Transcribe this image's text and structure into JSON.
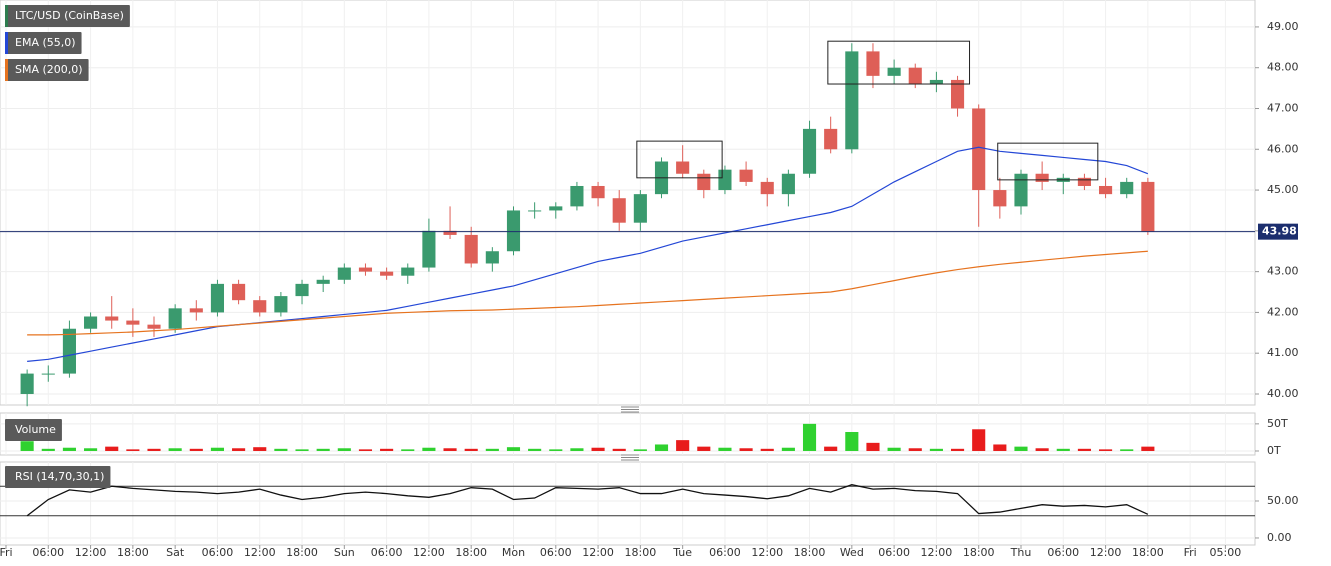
{
  "chart_data": [
    {
      "type": "candlestick",
      "name": "LTC/USD (CoinBase)",
      "x": [
        3,
        6,
        9,
        12,
        15,
        18,
        21,
        24,
        27,
        30,
        33,
        36,
        39,
        42,
        45,
        48,
        51,
        54,
        57,
        60,
        63,
        66,
        69,
        72,
        75,
        78,
        81,
        84,
        87,
        90,
        93,
        96,
        99,
        102,
        105,
        108,
        111,
        114,
        117,
        120,
        123,
        126,
        129,
        132,
        135,
        138,
        141,
        144,
        147,
        150,
        153,
        156,
        159,
        162
      ],
      "open": [
        40.0,
        40.5,
        40.5,
        41.6,
        41.9,
        41.8,
        41.7,
        41.6,
        42.1,
        42.0,
        42.7,
        42.3,
        42.0,
        42.4,
        42.7,
        42.8,
        43.1,
        43.0,
        42.9,
        43.1,
        44.0,
        43.9,
        43.2,
        43.5,
        44.5,
        44.5,
        44.6,
        45.1,
        44.8,
        44.2,
        44.9,
        45.7,
        45.4,
        45.0,
        45.5,
        45.2,
        44.9,
        45.4,
        46.5,
        46.0,
        48.4,
        47.8,
        48.0,
        47.6,
        47.7,
        47.0,
        45.0,
        44.6,
        45.4,
        45.2,
        45.3,
        45.1,
        44.9,
        45.2
      ],
      "high": [
        40.6,
        40.7,
        41.8,
        42.0,
        42.4,
        42.1,
        41.9,
        42.2,
        42.3,
        42.8,
        42.8,
        42.4,
        42.5,
        42.8,
        42.9,
        43.2,
        43.2,
        43.1,
        43.2,
        44.3,
        44.6,
        44.1,
        43.6,
        44.6,
        44.7,
        44.7,
        45.2,
        45.2,
        45.0,
        45.0,
        45.8,
        46.1,
        45.5,
        45.6,
        45.7,
        45.3,
        45.5,
        46.7,
        46.8,
        48.6,
        48.6,
        48.2,
        48.1,
        47.9,
        47.8,
        47.1,
        45.3,
        45.5,
        45.7,
        45.4,
        45.4,
        45.3,
        45.3,
        45.3
      ],
      "low": [
        39.7,
        40.3,
        40.4,
        41.5,
        41.6,
        41.4,
        41.4,
        41.5,
        41.8,
        41.9,
        42.2,
        41.9,
        41.9,
        42.2,
        42.5,
        42.7,
        42.9,
        42.8,
        42.7,
        43.0,
        43.8,
        43.1,
        43.0,
        43.4,
        44.3,
        44.3,
        44.5,
        44.6,
        44.0,
        44.0,
        44.8,
        45.3,
        44.8,
        44.9,
        45.1,
        44.6,
        44.6,
        45.3,
        45.9,
        45.9,
        47.5,
        47.6,
        47.5,
        47.4,
        46.8,
        44.1,
        44.3,
        44.4,
        45.0,
        44.9,
        45.0,
        44.8,
        44.8,
        43.9
      ],
      "close": [
        40.5,
        40.5,
        41.6,
        41.9,
        41.8,
        41.7,
        41.6,
        42.1,
        42.0,
        42.7,
        42.3,
        42.0,
        42.4,
        42.7,
        42.8,
        43.1,
        43.0,
        42.9,
        43.1,
        44.0,
        43.9,
        43.2,
        43.5,
        44.5,
        44.5,
        44.6,
        45.1,
        44.8,
        44.2,
        44.9,
        45.7,
        45.4,
        45.0,
        45.5,
        45.2,
        44.9,
        45.4,
        46.5,
        46.0,
        48.4,
        47.8,
        48.0,
        47.6,
        47.7,
        47.0,
        45.0,
        44.6,
        45.4,
        45.2,
        45.3,
        45.1,
        44.9,
        45.2,
        43.98
      ],
      "up_color": "#3a9a6e",
      "down_color": "#de5f57",
      "series": [
        {
          "name": "EMA (55,0)",
          "color": "#2447d6",
          "values": [
            40.8,
            40.85,
            40.95,
            41.05,
            41.15,
            41.25,
            41.35,
            41.45,
            41.55,
            41.65,
            41.7,
            41.75,
            41.8,
            41.85,
            41.9,
            41.95,
            42.0,
            42.05,
            42.15,
            42.25,
            42.35,
            42.45,
            42.55,
            42.65,
            42.8,
            42.95,
            43.1,
            43.25,
            43.35,
            43.45,
            43.6,
            43.75,
            43.85,
            43.95,
            44.05,
            44.15,
            44.25,
            44.35,
            44.45,
            44.6,
            44.9,
            45.2,
            45.45,
            45.7,
            45.95,
            46.05,
            45.95,
            45.9,
            45.85,
            45.8,
            45.75,
            45.7,
            45.6,
            45.4
          ]
        },
        {
          "name": "SMA (200,0)",
          "color": "#e6731f",
          "values": [
            41.45,
            41.45,
            41.46,
            41.48,
            41.5,
            41.52,
            41.55,
            41.58,
            41.62,
            41.66,
            41.7,
            41.74,
            41.78,
            41.82,
            41.86,
            41.9,
            41.94,
            41.98,
            42.0,
            42.02,
            42.04,
            42.05,
            42.06,
            42.08,
            42.1,
            42.12,
            42.14,
            42.17,
            42.2,
            42.23,
            42.26,
            42.29,
            42.32,
            42.35,
            42.38,
            42.41,
            42.44,
            42.47,
            42.5,
            42.58,
            42.68,
            42.78,
            42.88,
            42.97,
            43.05,
            43.12,
            43.18,
            43.23,
            43.28,
            43.33,
            43.38,
            43.42,
            43.46,
            43.5
          ]
        }
      ],
      "last_price": 43.98,
      "last_price_color": "#1c2e6e",
      "boxes": [
        {
          "x": [
            89.5,
            101.6
          ],
          "y": [
            45.3,
            46.2
          ]
        },
        {
          "x": [
            116.6,
            136.7
          ],
          "y": [
            47.6,
            48.65
          ]
        },
        {
          "x": [
            140.7,
            154.9
          ],
          "y": [
            45.25,
            46.15
          ]
        }
      ],
      "xlim": [
        -0.85,
        177.2
      ],
      "ylim": [
        39.73,
        49.66
      ],
      "yticks": [
        {
          "value": 40,
          "label": "40.00"
        },
        {
          "value": 41,
          "label": "41.00"
        },
        {
          "value": 42,
          "label": "42.00"
        },
        {
          "value": 43,
          "label": "43.00"
        },
        {
          "value": 44,
          "label": "44.00"
        },
        {
          "value": 45,
          "label": "45.00"
        },
        {
          "value": 46,
          "label": "46.00"
        },
        {
          "value": 47,
          "label": "47.00"
        },
        {
          "value": 48,
          "label": "48.00"
        },
        {
          "value": 49,
          "label": "49.00"
        }
      ],
      "grid": true
    },
    {
      "type": "bar",
      "name": "Volume",
      "x": [
        3,
        6,
        9,
        12,
        15,
        18,
        21,
        24,
        27,
        30,
        33,
        36,
        39,
        42,
        45,
        48,
        51,
        54,
        57,
        60,
        63,
        66,
        69,
        72,
        75,
        78,
        81,
        84,
        87,
        90,
        93,
        96,
        99,
        102,
        105,
        108,
        111,
        114,
        117,
        120,
        123,
        126,
        129,
        132,
        135,
        138,
        141,
        144,
        147,
        150,
        153,
        156,
        159,
        162
      ],
      "values": [
        18,
        4,
        6,
        5,
        8,
        3,
        4,
        5,
        4,
        6,
        5,
        7,
        4,
        3,
        4,
        5,
        3,
        4,
        3,
        6,
        5,
        4,
        4,
        7,
        4,
        3,
        5,
        6,
        4,
        3,
        12,
        20,
        8,
        6,
        5,
        4,
        6,
        50,
        8,
        35,
        15,
        6,
        5,
        4,
        4,
        40,
        12,
        8,
        5,
        4,
        4,
        3,
        3,
        8
      ],
      "up_color": "#2fd12f",
      "down_color": "#e81c1c",
      "xlim": [
        -0.85,
        177.2
      ],
      "ylim": [
        -7.4,
        70
      ],
      "yticks": [
        {
          "value": 0,
          "label": "0T"
        },
        {
          "value": 50,
          "label": "50T"
        }
      ],
      "grid": true
    },
    {
      "type": "line",
      "name": "RSI (14,70,30,1)",
      "x": [
        3,
        6,
        9,
        12,
        15,
        18,
        21,
        24,
        27,
        30,
        33,
        36,
        39,
        42,
        45,
        48,
        51,
        54,
        57,
        60,
        63,
        66,
        69,
        72,
        75,
        78,
        81,
        84,
        87,
        90,
        93,
        96,
        99,
        102,
        105,
        108,
        111,
        114,
        117,
        120,
        123,
        126,
        129,
        132,
        135,
        138,
        141,
        144,
        147,
        150,
        153,
        156,
        159,
        162
      ],
      "values": [
        30,
        52,
        65,
        62,
        70,
        67,
        65,
        63,
        62,
        60,
        62,
        66,
        58,
        52,
        55,
        60,
        62,
        60,
        57,
        55,
        60,
        68,
        66,
        52,
        54,
        68,
        67,
        66,
        68,
        60,
        60,
        66,
        60,
        58,
        56,
        53,
        57,
        67,
        62,
        72,
        66,
        67,
        64,
        63,
        60,
        33,
        35,
        40,
        45,
        43,
        44,
        42,
        45,
        32
      ],
      "color": "#111111",
      "levels": [
        30,
        70
      ],
      "xlim": [
        -0.85,
        177.2
      ],
      "ylim": [
        -9.5,
        102.7
      ],
      "yticks": [
        {
          "value": 0,
          "label": "0.00"
        },
        {
          "value": 50,
          "label": "50.00"
        }
      ],
      "xticks": [
        {
          "value": 0,
          "label": "Fri"
        },
        {
          "value": 6,
          "label": "06:00"
        },
        {
          "value": 12,
          "label": "12:00"
        },
        {
          "value": 18,
          "label": "18:00"
        },
        {
          "value": 24,
          "label": "Sat"
        },
        {
          "value": 30,
          "label": "06:00"
        },
        {
          "value": 36,
          "label": "12:00"
        },
        {
          "value": 42,
          "label": "18:00"
        },
        {
          "value": 48,
          "label": "Sun"
        },
        {
          "value": 54,
          "label": "06:00"
        },
        {
          "value": 60,
          "label": "12:00"
        },
        {
          "value": 66,
          "label": "18:00"
        },
        {
          "value": 72,
          "label": "Mon"
        },
        {
          "value": 78,
          "label": "06:00"
        },
        {
          "value": 84,
          "label": "12:00"
        },
        {
          "value": 90,
          "label": "18:00"
        },
        {
          "value": 96,
          "label": "Tue"
        },
        {
          "value": 102,
          "label": "06:00"
        },
        {
          "value": 108,
          "label": "12:00"
        },
        {
          "value": 114,
          "label": "18:00"
        },
        {
          "value": 120,
          "label": "Wed"
        },
        {
          "value": 126,
          "label": "06:00"
        },
        {
          "value": 132,
          "label": "12:00"
        },
        {
          "value": 138,
          "label": "18:00"
        },
        {
          "value": 144,
          "label": "Thu"
        },
        {
          "value": 150,
          "label": "06:00"
        },
        {
          "value": 156,
          "label": "12:00"
        },
        {
          "value": 162,
          "label": "18:00"
        },
        {
          "value": 168,
          "label": "Fri"
        },
        {
          "value": 173,
          "label": "05:00"
        }
      ],
      "grid": true
    }
  ]
}
